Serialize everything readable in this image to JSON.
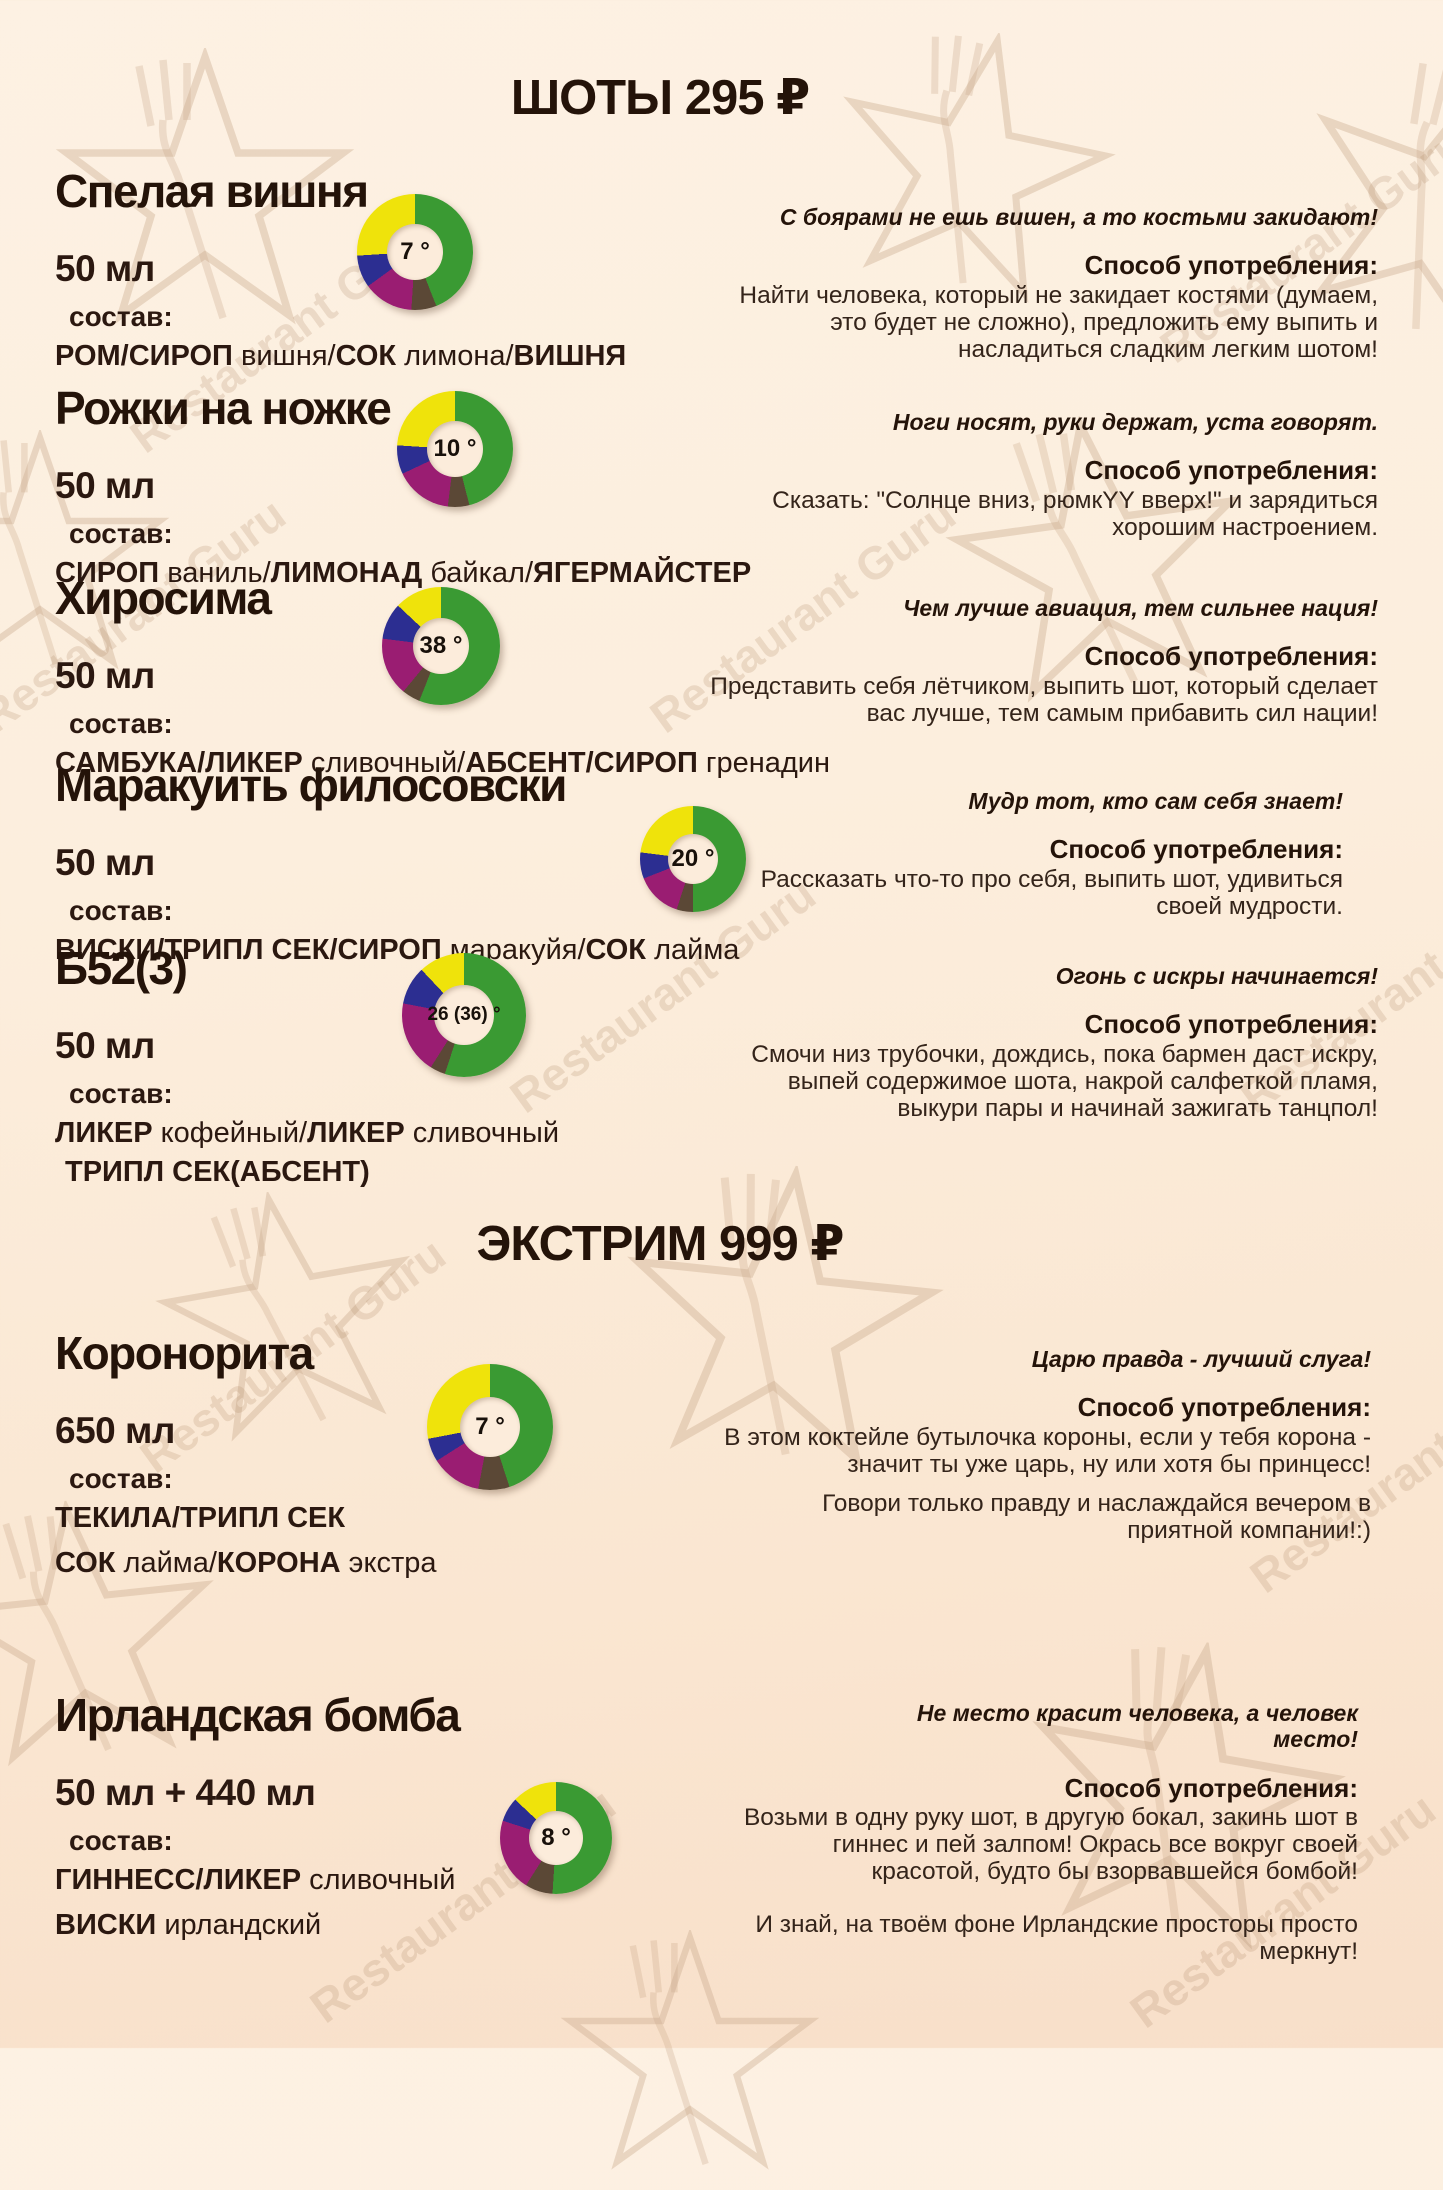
{
  "watermark": {
    "brand": "Restaurant Guru"
  },
  "labels": {
    "sostav": "состав:",
    "method": "Способ употребления:"
  },
  "sections": [
    {
      "title": "ШОТЫ 295 ₽"
    },
    {
      "title": "ЭКСТРИМ 999 ₽"
    }
  ],
  "colors": {
    "green": "#3a9a33",
    "yellow": "#efe30b",
    "magenta": "#9a1d72",
    "blue": "#2c2e91",
    "brown": "#5b4836",
    "background": "#fcecdb",
    "text": "#241309"
  },
  "items": [
    {
      "name": "Спелая вишня",
      "volume": "50 мл",
      "degree": "7 °",
      "donut": {
        "segments": [
          {
            "color": "#3a9a33",
            "pct": 44
          },
          {
            "color": "#5b4836",
            "pct": 7
          },
          {
            "color": "#9a1d72",
            "pct": 14
          },
          {
            "color": "#2c2e91",
            "pct": 9
          },
          {
            "color": "#efe30b",
            "pct": 26
          }
        ]
      },
      "ingredients": [
        [
          {
            "t": "РОМ/СИРОП",
            "b": true
          },
          {
            "t": " вишня/",
            "b": false
          },
          {
            "t": "СОК",
            "b": true
          },
          {
            "t": " лимона/",
            "b": false
          },
          {
            "t": "ВИШНЯ",
            "b": true
          }
        ]
      ],
      "quote": "С боярами не ешь вишен, а то костьми закидают!",
      "desc": [
        "Найти человека, который не закидает костями (думаем, это будет не сложно), предложить ему выпить и насладиться сладким легким шотом!"
      ]
    },
    {
      "name": "Рожки на ножке",
      "volume": "50 мл",
      "degree": "10 °",
      "donut": {
        "segments": [
          {
            "color": "#3a9a33",
            "pct": 46
          },
          {
            "color": "#5b4836",
            "pct": 6
          },
          {
            "color": "#9a1d72",
            "pct": 16
          },
          {
            "color": "#2c2e91",
            "pct": 8
          },
          {
            "color": "#efe30b",
            "pct": 24
          }
        ]
      },
      "ingredients": [
        [
          {
            "t": "СИРОП",
            "b": true
          },
          {
            "t": " ваниль/",
            "b": false
          },
          {
            "t": "ЛИМОНАД",
            "b": true
          },
          {
            "t": " байкал/",
            "b": false
          },
          {
            "t": "ЯГЕРМАЙСТЕР",
            "b": true
          }
        ]
      ],
      "quote": "Ноги носят, руки держат, уста говорят.",
      "desc": [
        "Сказать: \"Солнце вниз, рюмкYY вверх!\" и зарядиться хорошим настроением."
      ]
    },
    {
      "name": "Хиросима",
      "volume": "50 мл",
      "degree": "38 °",
      "donut": {
        "segments": [
          {
            "color": "#3a9a33",
            "pct": 56
          },
          {
            "color": "#5b4836",
            "pct": 5
          },
          {
            "color": "#9a1d72",
            "pct": 16
          },
          {
            "color": "#2c2e91",
            "pct": 10
          },
          {
            "color": "#efe30b",
            "pct": 13
          }
        ]
      },
      "ingredients": [
        [
          {
            "t": "САМБУКА/ЛИКЕР",
            "b": true
          },
          {
            "t": " сливочный/",
            "b": false
          },
          {
            "t": "АБСЕНТ/СИРОП",
            "b": true
          },
          {
            "t": " гренадин",
            "b": false
          }
        ]
      ],
      "quote": "Чем лучше авиация, тем сильнее нация!",
      "desc": [
        "Представить себя лётчиком, выпить шот, который сделает вас лучше, тем самым прибавить сил нации!"
      ]
    },
    {
      "name": "Маракуить филосовски",
      "volume": "50 мл",
      "degree": "20 °",
      "donut": {
        "segments": [
          {
            "color": "#3a9a33",
            "pct": 50
          },
          {
            "color": "#5b4836",
            "pct": 5
          },
          {
            "color": "#9a1d72",
            "pct": 14
          },
          {
            "color": "#2c2e91",
            "pct": 8
          },
          {
            "color": "#efe30b",
            "pct": 23
          }
        ]
      },
      "ingredients": [
        [
          {
            "t": "ВИСКИ/ТРИПЛ СЕК/СИРОП",
            "b": true
          },
          {
            "t": " маракуйя/",
            "b": false
          },
          {
            "t": "СОК",
            "b": true
          },
          {
            "t": " лайма",
            "b": false
          }
        ]
      ],
      "quote": "Мудр тот, кто сам себя знает!",
      "desc": [
        "Рассказать что-то про себя, выпить шот, удивиться своей мудрости."
      ]
    },
    {
      "name": "Б52(3)",
      "volume": "50 мл",
      "degree": "26 (36) °",
      "donut": {
        "segments": [
          {
            "color": "#3a9a33",
            "pct": 55
          },
          {
            "color": "#5b4836",
            "pct": 4
          },
          {
            "color": "#9a1d72",
            "pct": 19
          },
          {
            "color": "#2c2e91",
            "pct": 10
          },
          {
            "color": "#efe30b",
            "pct": 12
          }
        ]
      },
      "ingredients": [
        [
          {
            "t": "ЛИКЕР",
            "b": true
          },
          {
            "t": " кофейный/",
            "b": false
          },
          {
            "t": "ЛИКЕР",
            "b": true
          },
          {
            "t": " сливочный",
            "b": false
          }
        ],
        [
          {
            "t": "ТРИПЛ СЕК(АБСЕНТ)",
            "b": true
          }
        ]
      ],
      "quote": "Огонь с искры начинается!",
      "desc": [
        "Смочи низ трубочки, дождись, пока бармен даст искру, выпей содержимое шота, накрой салфеткой пламя, выкури пары и начинай зажигать танцпол!"
      ]
    },
    {
      "name": "Коронорита",
      "volume": "650 мл",
      "degree": "7 °",
      "donut": {
        "segments": [
          {
            "color": "#3a9a33",
            "pct": 45
          },
          {
            "color": "#5b4836",
            "pct": 8
          },
          {
            "color": "#9a1d72",
            "pct": 13
          },
          {
            "color": "#2c2e91",
            "pct": 6
          },
          {
            "color": "#efe30b",
            "pct": 28
          }
        ]
      },
      "ingredients": [
        [
          {
            "t": "ТЕКИЛА/ТРИПЛ СЕК",
            "b": true
          }
        ],
        [
          {
            "t": "СОК",
            "b": true
          },
          {
            "t": " лайма/",
            "b": false
          },
          {
            "t": "КОРОНА",
            "b": true
          },
          {
            "t": " экстра",
            "b": false
          }
        ]
      ],
      "quote": "Царю правда - лучший слуга!",
      "desc": [
        "В этом коктейле бутылочка короны, если у тебя корона - значит ты уже царь, ну или хотя бы принцесс!",
        "Говори только правду и наслаждайся вечером в приятной компании!:)"
      ]
    },
    {
      "name": "Ирландская бомба",
      "volume": "50 мл + 440 мл",
      "degree": "8 °",
      "donut": {
        "segments": [
          {
            "color": "#3a9a33",
            "pct": 51
          },
          {
            "color": "#5b4836",
            "pct": 8
          },
          {
            "color": "#9a1d72",
            "pct": 21
          },
          {
            "color": "#2c2e91",
            "pct": 7
          },
          {
            "color": "#efe30b",
            "pct": 13
          }
        ]
      },
      "ingredients": [
        [
          {
            "t": "ГИННЕСС/ЛИКЕР",
            "b": true
          },
          {
            "t": " сливочный",
            "b": false
          }
        ],
        [
          {
            "t": "ВИСКИ",
            "b": true
          },
          {
            "t": " ирландский",
            "b": false
          }
        ]
      ],
      "quote": "Не место красит человека, а человек место!",
      "desc": [
        "Возьми в одну руку шот, в другую бокал, закинь шот в гиннес и пей залпом! Окрась все вокруг своей красотой, будто бы взорвавшейся бомбой!",
        "И знай, на твоём фоне Ирландские просторы просто меркнут!"
      ]
    }
  ]
}
